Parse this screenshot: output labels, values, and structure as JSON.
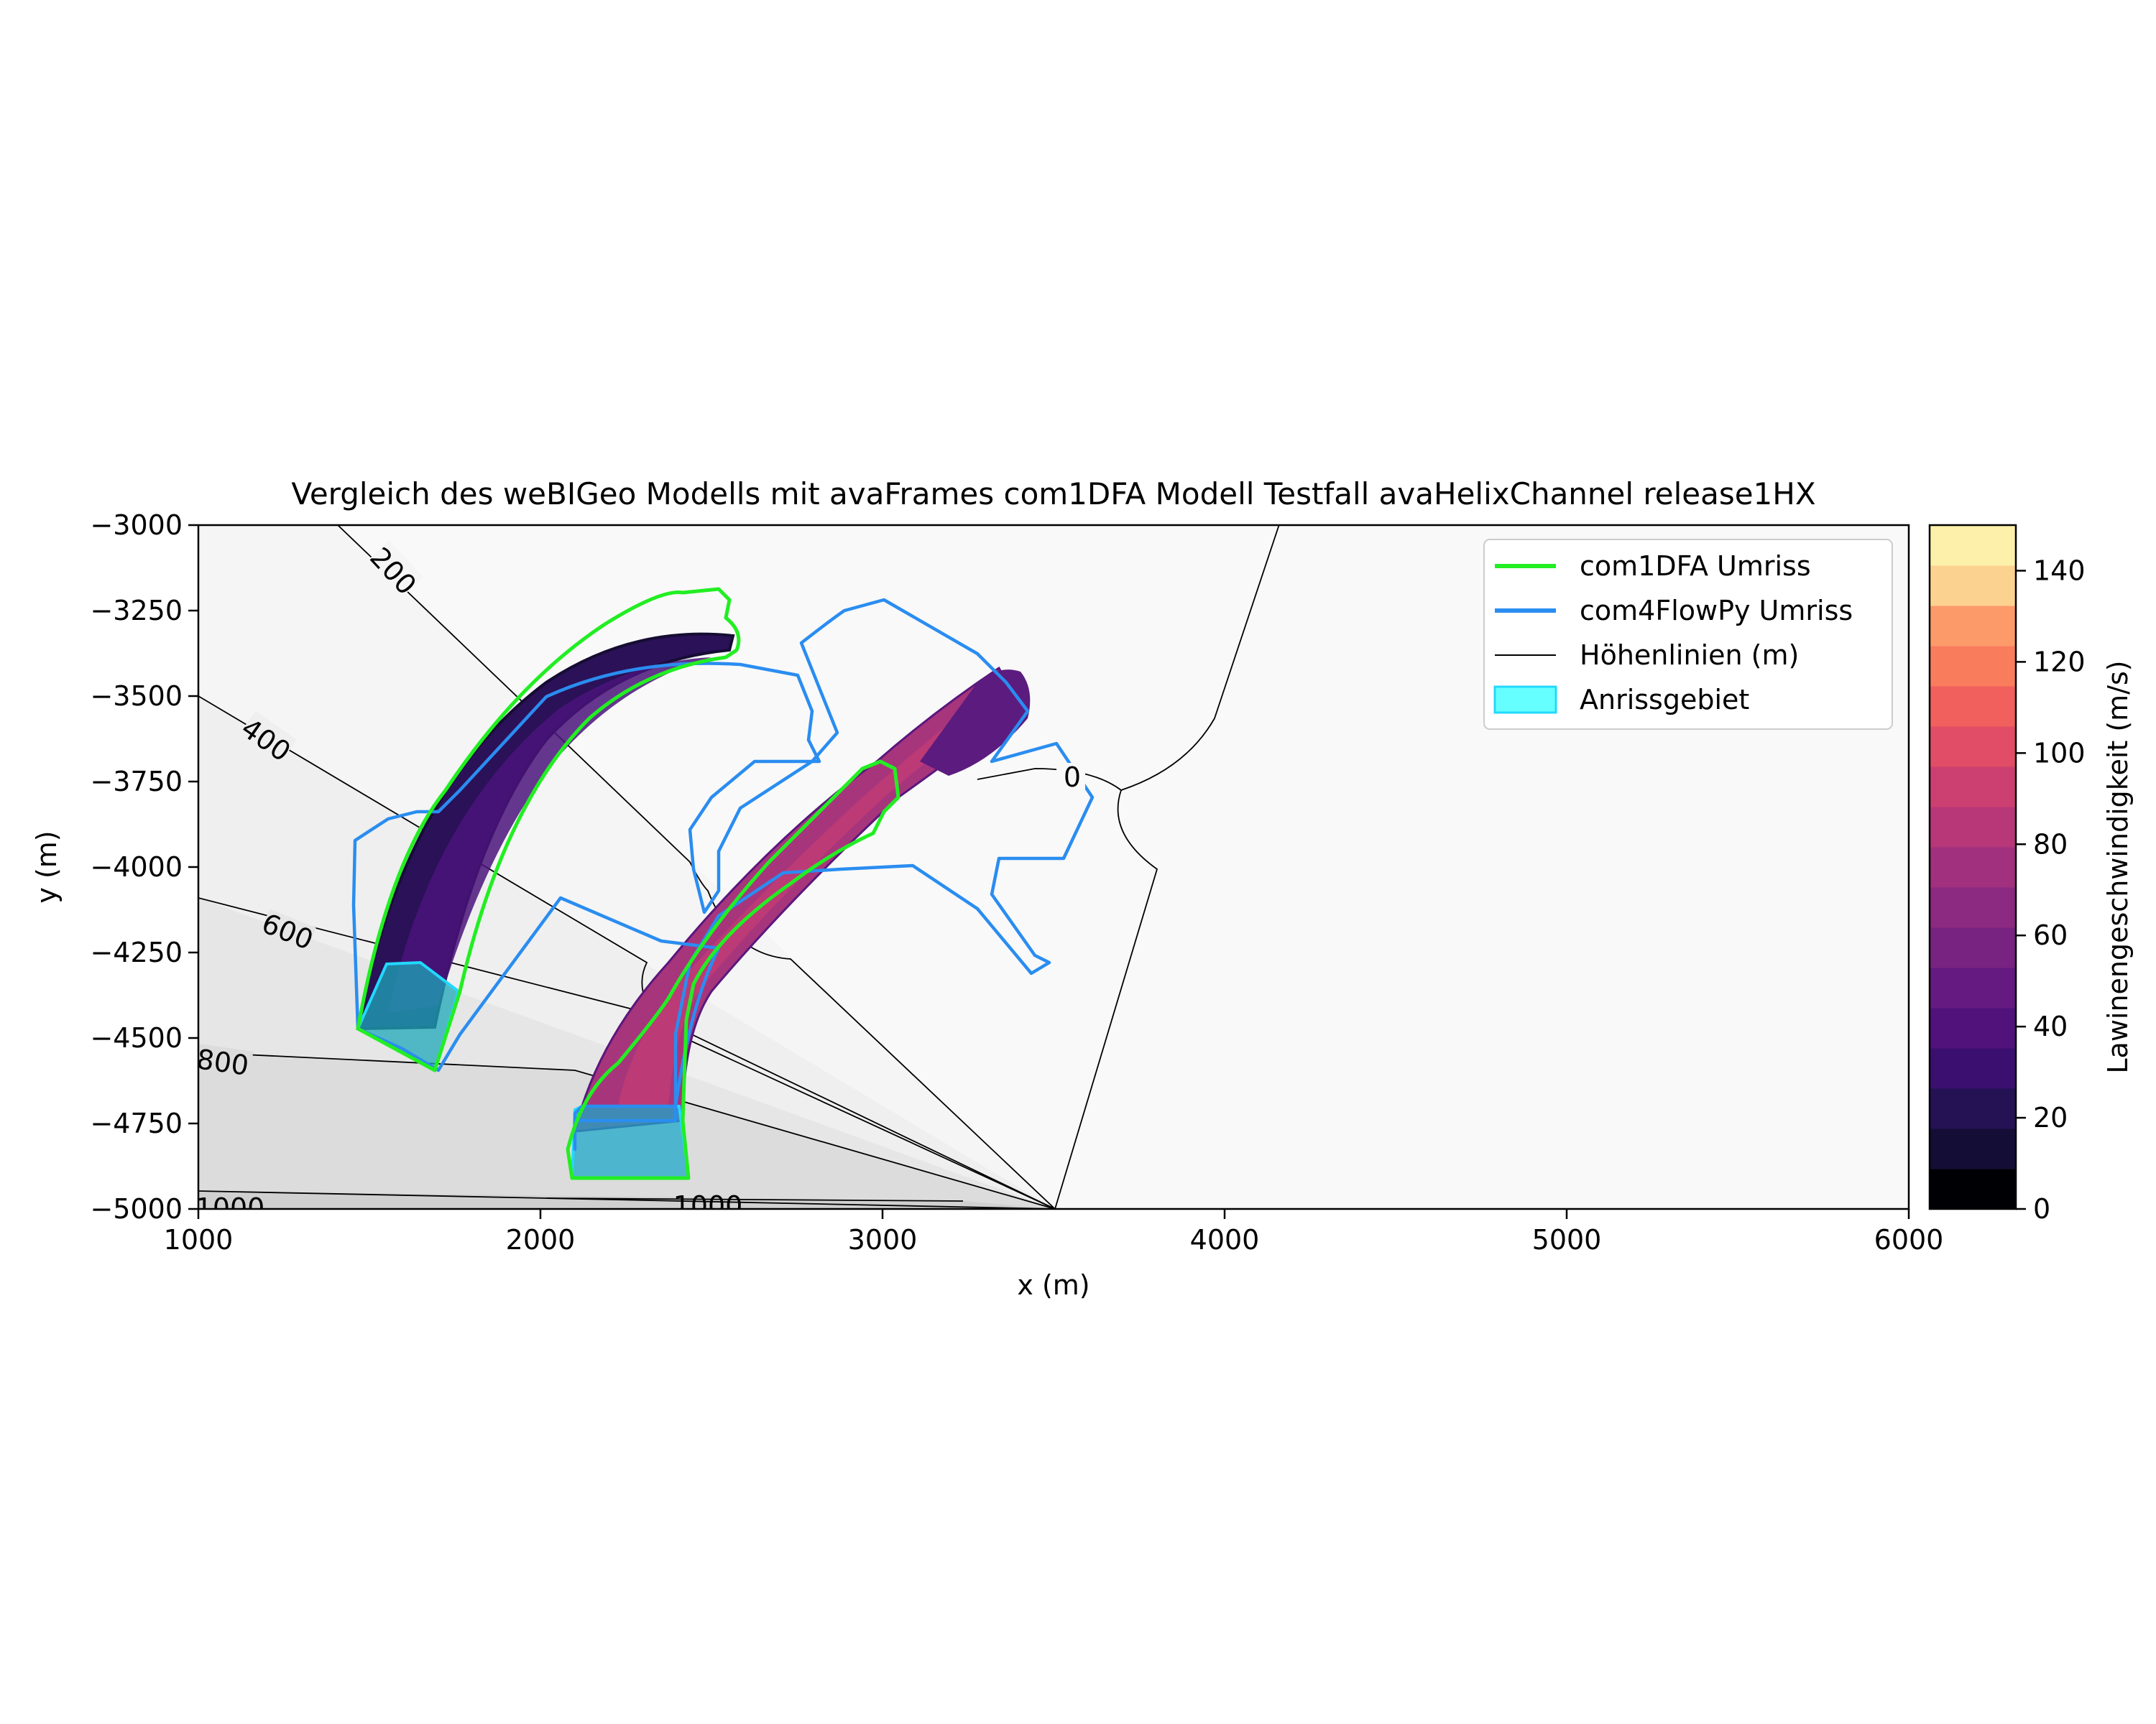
{
  "chart_data": {
    "type": "heatmap",
    "title": "Vergleich des weBIGeo Modells mit avaFrames com1DFA Modell Testfall avaHelixChannel release1HX",
    "xlabel": "x (m)",
    "ylabel": "y (m)",
    "xlim": [
      1000,
      6000
    ],
    "ylim": [
      -5000,
      -3000
    ],
    "x_ticks": [
      "1000",
      "2000",
      "3000",
      "4000",
      "5000",
      "6000"
    ],
    "y_ticks": [
      "−3000",
      "−3250",
      "−3500",
      "−3750",
      "−4000",
      "−4250",
      "−4500",
      "−4750",
      "−5000"
    ],
    "grid": false,
    "legend_position": "top-right",
    "legend": [
      {
        "label": "com1DFA Umriss",
        "kind": "line",
        "color": "#22ee22"
      },
      {
        "label": "com4FlowPy Umriss",
        "kind": "line",
        "color": "#2a8df0"
      },
      {
        "label": "Höhenlinien (m)",
        "kind": "line",
        "color": "#000000"
      },
      {
        "label": "Anrissgebiet",
        "kind": "patch",
        "color": "#66ffff"
      }
    ],
    "contour_labels": [
      "0",
      "200",
      "400",
      "600",
      "800",
      "1000",
      "1000"
    ],
    "colorbar": {
      "label": "Lawinengeschwindigkeit (m/s)",
      "range": [
        0,
        150
      ],
      "ticks": [
        "0",
        "20",
        "40",
        "60",
        "80",
        "100",
        "120",
        "140"
      ],
      "levels": 15,
      "colors": [
        "#000004",
        "#140e36",
        "#251255",
        "#3b0f70",
        "#51127c",
        "#641a80",
        "#782281",
        "#8c2981",
        "#a1307e",
        "#b73779",
        "#cc3f71",
        "#e14d66",
        "#f1605d",
        "#f97c5d",
        "#fd9a6a",
        "#fcd290",
        "#fcf0aa"
      ]
    }
  }
}
